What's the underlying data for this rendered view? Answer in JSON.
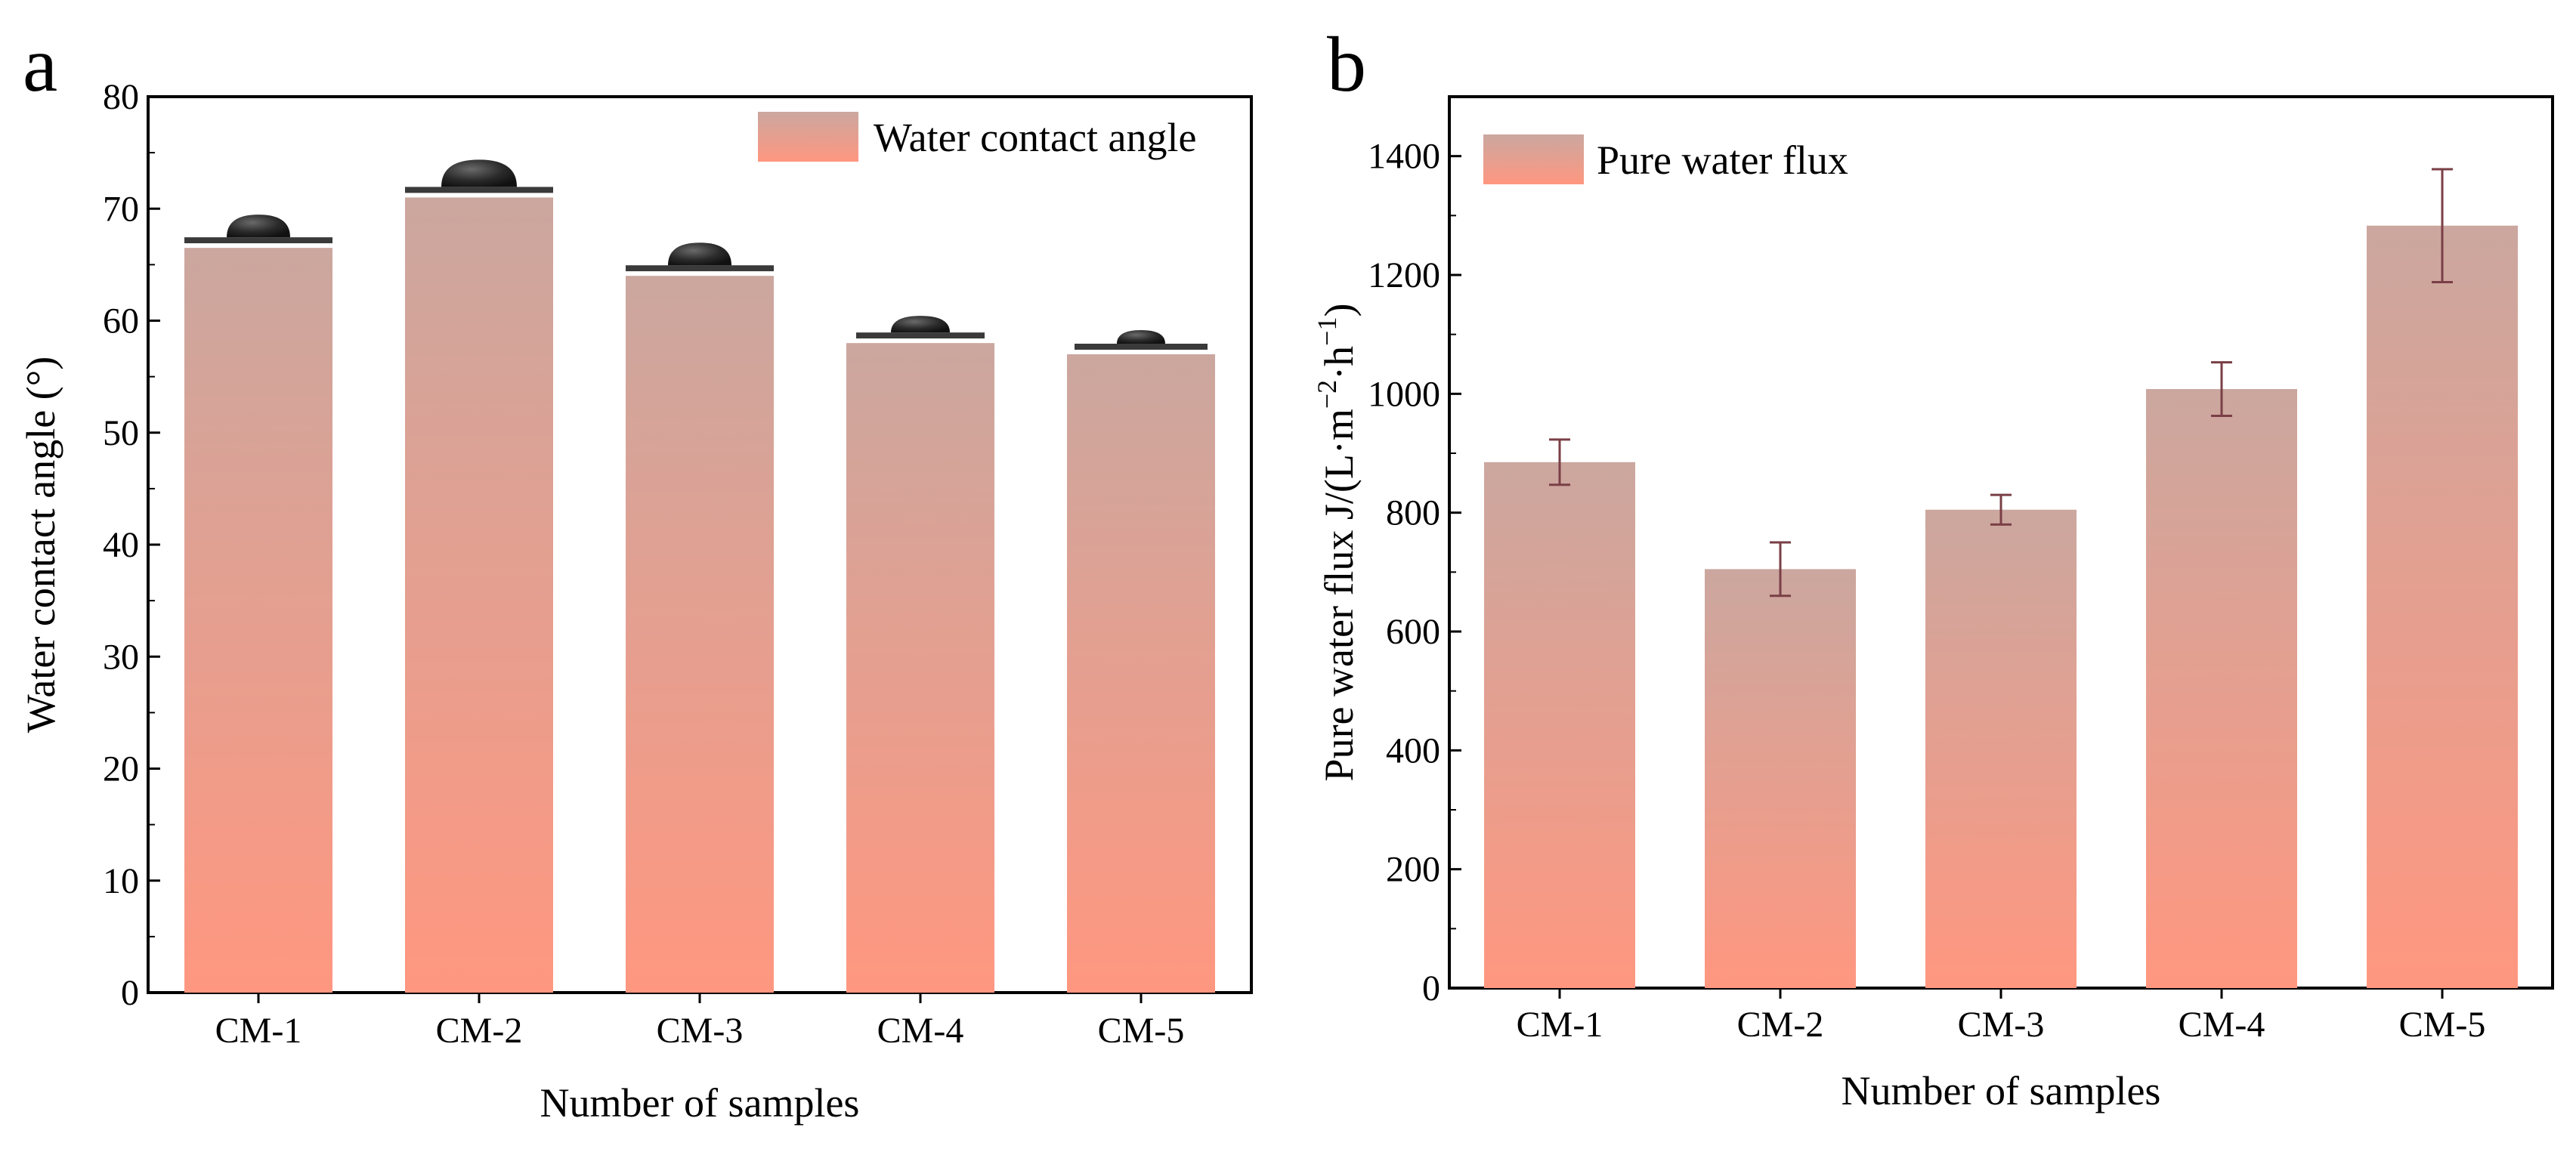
{
  "chart_data": [
    {
      "panel": "a",
      "type": "bar",
      "categories": [
        "CM-1",
        "CM-2",
        "CM-3",
        "CM-4",
        "CM-5"
      ],
      "series": [
        {
          "name": "Water contact angle",
          "values": [
            66.5,
            71.0,
            64.0,
            58.0,
            57.0
          ]
        }
      ],
      "xlabel": "Number of samples",
      "ylabel": "Water contact angle (°)",
      "ylim": [
        0,
        80
      ],
      "yticks": [
        0,
        10,
        20,
        30,
        40,
        50,
        60,
        70,
        80
      ],
      "legend_position": "top-right",
      "grid": false,
      "annotations": "water droplet images on top of each bar"
    },
    {
      "panel": "b",
      "type": "bar",
      "categories": [
        "CM-1",
        "CM-2",
        "CM-3",
        "CM-4",
        "CM-5"
      ],
      "series": [
        {
          "name": "Pure water flux",
          "values": [
            885,
            705,
            805,
            1008,
            1283
          ],
          "errors": [
            38,
            45,
            25,
            45,
            95
          ]
        }
      ],
      "xlabel": "Number of samples",
      "ylabel": "Pure water flux J/(L·m−2·h−1)",
      "ylim": [
        0,
        1500
      ],
      "yticks": [
        0,
        200,
        400,
        600,
        800,
        1000,
        1200,
        1400
      ],
      "legend_position": "top-left",
      "grid": false
    }
  ],
  "colors": {
    "bar_top": "#cba79f",
    "bar_bottom": "#ff9780",
    "error_bar": "#7a3f46",
    "axis": "#000000"
  }
}
